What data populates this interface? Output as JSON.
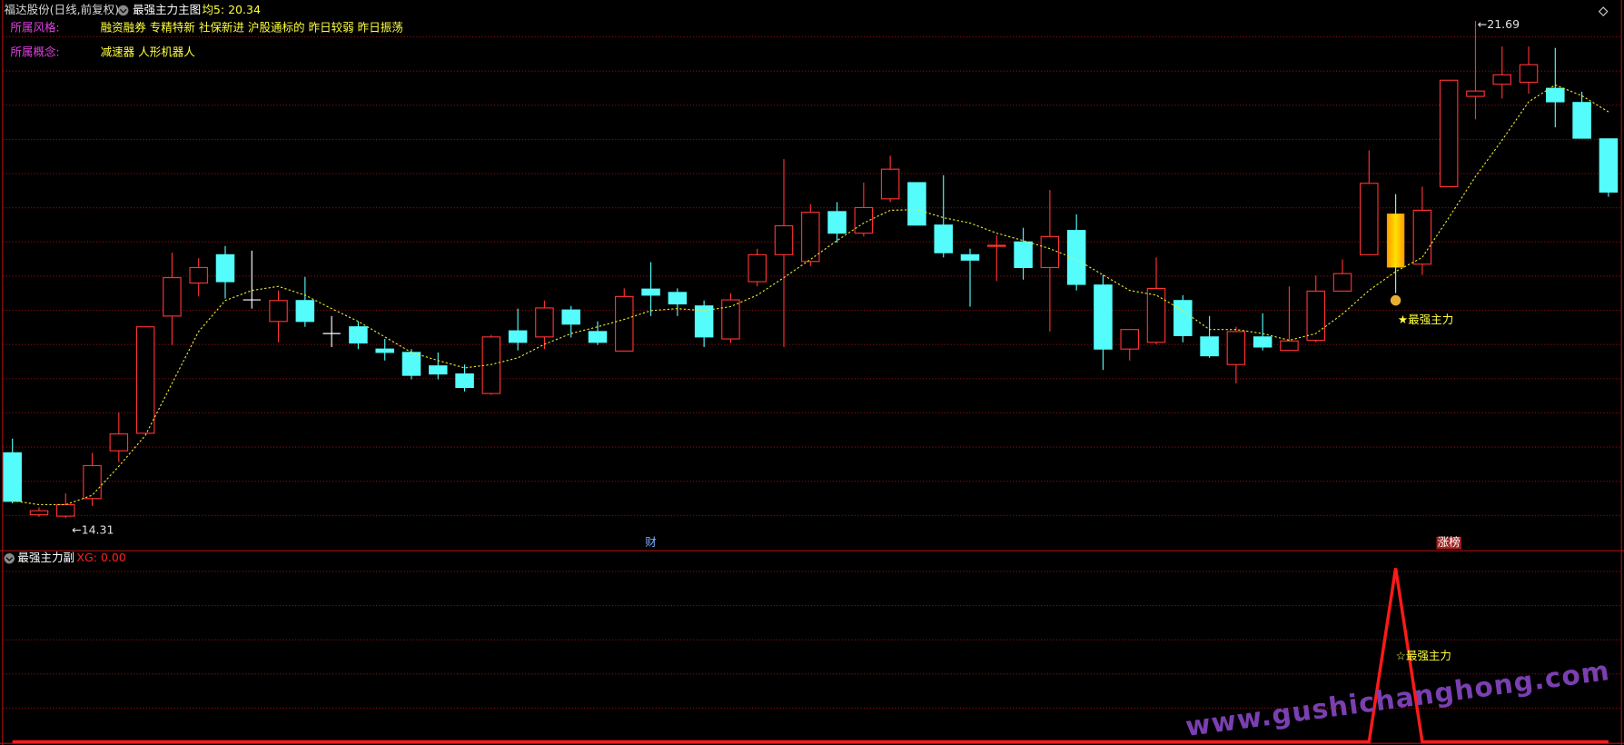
{
  "header": {
    "stock": "福达股份(日线,前复权)",
    "indicator": "最强主力主图",
    "ma_label": "均5: 20.34",
    "style_label": "所属风格:",
    "style_value": "融资融券 专精特新 社保新进 沪股通标的 昨日较弱 昨日振荡",
    "concept_label": "所属概念:",
    "concept_value": "减速器 人形机器人"
  },
  "watermark": "www.gushichanghong.com",
  "chart_data": [
    {
      "type": "candlestick",
      "ylim": [
        13.85,
        22.0
      ],
      "grid": true,
      "up_color": "#ff3232",
      "down_color": "#54fcfc",
      "doji_color": "#ffffff",
      "open": [
        15.28,
        14.36,
        14.34,
        14.6,
        15.31,
        15.57,
        17.31,
        17.8,
        18.22,
        17.55,
        17.23,
        17.54,
        17.05,
        17.15,
        16.82,
        16.77,
        16.57,
        16.45,
        16.16,
        17.09,
        17.0,
        17.4,
        17.08,
        16.79,
        17.71,
        17.66,
        17.46,
        16.97,
        17.82,
        18.22,
        18.12,
        18.86,
        18.54,
        19.05,
        19.29,
        18.66,
        18.22,
        18.35,
        18.41,
        18.03,
        18.58,
        17.77,
        16.82,
        16.92,
        17.54,
        17.0,
        16.59,
        17.0,
        16.8,
        16.95,
        17.68,
        18.22,
        18.83,
        18.08,
        19.23,
        20.57,
        20.75,
        20.78,
        20.69,
        20.48,
        19.94
      ],
      "high": [
        15.49,
        14.47,
        14.68,
        15.28,
        15.88,
        17.15,
        18.25,
        18.17,
        18.35,
        18.28,
        17.69,
        17.89,
        17.31,
        17.23,
        16.97,
        16.82,
        16.77,
        16.59,
        17.03,
        17.42,
        17.54,
        17.46,
        17.23,
        17.72,
        18.11,
        17.72,
        17.54,
        17.65,
        18.31,
        19.64,
        18.97,
        19.0,
        19.29,
        19.69,
        19.29,
        19.4,
        18.31,
        18.51,
        18.62,
        19.18,
        18.82,
        17.92,
        17.11,
        18.18,
        17.62,
        17.31,
        17.15,
        17.35,
        17.75,
        17.91,
        18.15,
        19.77,
        19.12,
        19.23,
        20.81,
        21.69,
        21.31,
        21.31,
        21.29,
        20.64,
        19.94
      ],
      "low": [
        14.53,
        14.33,
        14.31,
        14.49,
        15.14,
        15.57,
        16.88,
        17.6,
        17.57,
        17.42,
        16.92,
        17.15,
        16.85,
        16.82,
        16.65,
        16.37,
        16.37,
        16.19,
        16.14,
        16.8,
        16.82,
        16.99,
        16.88,
        16.79,
        17.31,
        17.31,
        16.85,
        16.91,
        17.75,
        16.85,
        18.05,
        18.4,
        18.49,
        19.0,
        18.66,
        18.18,
        17.45,
        17.83,
        17.85,
        17.08,
        17.69,
        16.51,
        16.65,
        16.89,
        16.92,
        16.69,
        16.31,
        16.8,
        16.8,
        16.92,
        17.68,
        18.22,
        17.65,
        17.92,
        19.23,
        20.23,
        20.54,
        20.61,
        20.11,
        19.95,
        19.08
      ],
      "close": [
        14.56,
        14.42,
        14.51,
        15.09,
        15.56,
        17.15,
        17.88,
        18.03,
        17.82,
        17.55,
        17.54,
        17.23,
        17.05,
        16.91,
        16.77,
        16.43,
        16.45,
        16.25,
        17.0,
        16.92,
        17.43,
        17.19,
        16.92,
        17.6,
        17.62,
        17.49,
        17.0,
        17.55,
        18.22,
        18.65,
        18.85,
        18.54,
        18.92,
        19.49,
        18.66,
        18.25,
        18.14,
        18.36,
        18.03,
        18.49,
        17.78,
        16.82,
        17.11,
        17.72,
        17.02,
        16.72,
        17.08,
        16.85,
        16.94,
        17.68,
        17.94,
        19.28,
        18.03,
        18.88,
        20.81,
        20.65,
        20.89,
        21.04,
        20.49,
        19.95,
        19.15
      ],
      "ma": {
        "color": "#e8e830",
        "values": [
          14.57,
          14.51,
          14.51,
          14.65,
          15.08,
          15.54,
          16.31,
          17.08,
          17.54,
          17.69,
          17.75,
          17.62,
          17.42,
          17.23,
          17.0,
          16.77,
          16.65,
          16.54,
          16.59,
          16.69,
          16.89,
          17.05,
          17.15,
          17.26,
          17.39,
          17.42,
          17.39,
          17.45,
          17.62,
          17.88,
          18.15,
          18.43,
          18.69,
          18.88,
          18.89,
          18.77,
          18.69,
          18.54,
          18.43,
          18.31,
          18.15,
          17.92,
          17.69,
          17.62,
          17.39,
          17.11,
          17.11,
          17.05,
          16.95,
          17.05,
          17.34,
          17.69,
          17.97,
          18.18,
          18.77,
          19.38,
          19.92,
          20.49,
          20.74,
          20.58,
          20.34
        ]
      },
      "low_label": {
        "value": 14.31,
        "label": "←14.31"
      },
      "high_label": {
        "value": 21.69,
        "label": "←21.69"
      },
      "signal_label": "★最强主力",
      "events": [
        null,
        null,
        null,
        null,
        null,
        null,
        null,
        null,
        null,
        null,
        null,
        null,
        null,
        null,
        null,
        null,
        null,
        null,
        null,
        null,
        null,
        null,
        null,
        null,
        {
          "text": "财",
          "color": "#7fb0ff"
        },
        null,
        null,
        null,
        null,
        null,
        null,
        null,
        null,
        null,
        null,
        null,
        null,
        null,
        null,
        null,
        null,
        null,
        null,
        null,
        null,
        null,
        null,
        null,
        null,
        null,
        null,
        null,
        null,
        null,
        {
          "text": "涨榜",
          "color": "#ffffff",
          "background": "#a02020"
        },
        null,
        null,
        null,
        null,
        null,
        null
      ]
    },
    {
      "type": "line",
      "title": "最强主力副",
      "value_label": "XG: 0.00",
      "ylim": [
        0,
        1.02
      ],
      "grid": true,
      "annotation": "☆最强主力",
      "series": [
        {
          "color": "#ff1a1a",
          "values": [
            0,
            0,
            0,
            0,
            0,
            0,
            0,
            0,
            0,
            0,
            0,
            0,
            0,
            0,
            0,
            0,
            0,
            0,
            0,
            0,
            0,
            0,
            0,
            0,
            0,
            0,
            0,
            0,
            0,
            0,
            0,
            0,
            0,
            0,
            0,
            0,
            0,
            0,
            0,
            0,
            0,
            0,
            0,
            0,
            0,
            0,
            0,
            0,
            0,
            0,
            0,
            0,
            1,
            0,
            0,
            0,
            0,
            0,
            0,
            0,
            0
          ]
        }
      ]
    }
  ]
}
